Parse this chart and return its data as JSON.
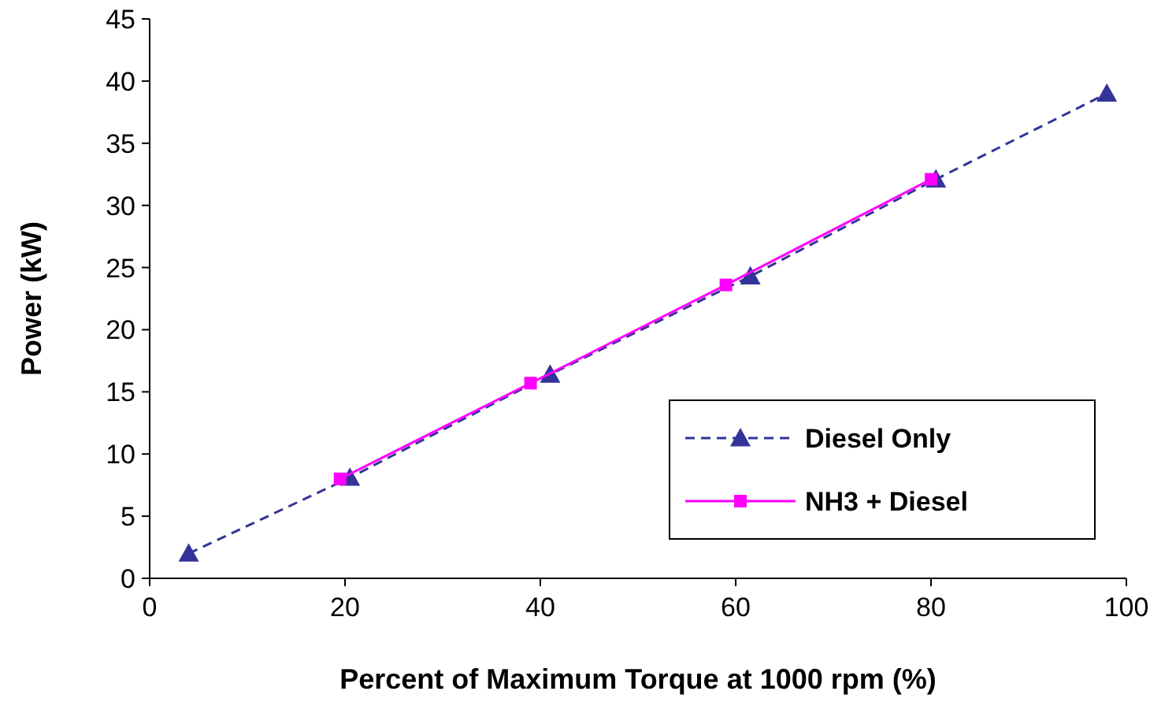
{
  "chart_data": {
    "type": "line",
    "xlabel": "Percent of Maximum Torque at 1000 rpm (%)",
    "ylabel": "Power (kW)",
    "xlim": [
      0,
      100
    ],
    "xticks": [
      0,
      20,
      40,
      60,
      80,
      100
    ],
    "ylim": [
      0,
      45
    ],
    "yticks": [
      0,
      5,
      10,
      15,
      20,
      25,
      30,
      35,
      40,
      45
    ],
    "grid": false,
    "legend": "bottom right",
    "series": [
      {
        "name": "Diesel Only",
        "color": "#333399",
        "x": [
          4,
          20.5,
          41,
          61.5,
          80.5,
          98
        ],
        "values": [
          2,
          8.1,
          16.4,
          24.3,
          32.1,
          39
        ],
        "marker": "triangle",
        "line_style": "dashed"
      },
      {
        "name": "NH3 + Diesel",
        "color": "#ff00ff",
        "x": [
          19.5,
          39,
          59,
          80
        ],
        "values": [
          8,
          15.7,
          23.6,
          32.1
        ],
        "marker": "square",
        "line_style": "solid"
      }
    ]
  }
}
